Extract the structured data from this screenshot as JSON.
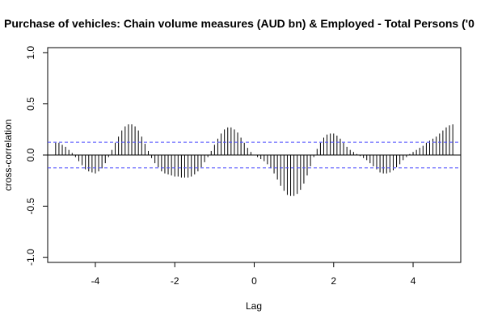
{
  "colors": {
    "background": "#ffffff",
    "spike": "#000000",
    "confidence_line": "#4d4dff",
    "zero_line": "#000000",
    "axis": "#000000"
  },
  "chart_data": {
    "type": "bar",
    "subtype": "cross-correlation-spikes",
    "title": "Purchase of vehicles: Chain volume measures (AUD bn) & Employed - Total Persons ('0",
    "xlabel": "Lag",
    "ylabel": "cross-correlation",
    "xlim": [
      -5.2,
      5.2
    ],
    "ylim": [
      -1.05,
      1.05
    ],
    "x_ticks": [
      -4,
      -2,
      0,
      2,
      4
    ],
    "x_tick_labels": [
      "-4",
      "-2",
      "0",
      "2",
      "4"
    ],
    "y_ticks": [
      -1.0,
      -0.5,
      0.0,
      0.5,
      1.0
    ],
    "y_tick_labels": [
      "-1.0",
      "-0.5",
      "0.0",
      "0.5",
      "1.0"
    ],
    "confidence_bound": 0.125,
    "grid": false,
    "legend": "none",
    "lags": [
      -5.0,
      -4.9167,
      -4.8333,
      -4.75,
      -4.6667,
      -4.5833,
      -4.5,
      -4.4167,
      -4.3333,
      -4.25,
      -4.1667,
      -4.0833,
      -4.0,
      -3.9167,
      -3.8333,
      -3.75,
      -3.6667,
      -3.5833,
      -3.5,
      -3.4167,
      -3.3333,
      -3.25,
      -3.1667,
      -3.0833,
      -3.0,
      -2.9167,
      -2.8333,
      -2.75,
      -2.6667,
      -2.5833,
      -2.5,
      -2.4167,
      -2.3333,
      -2.25,
      -2.1667,
      -2.0833,
      -2.0,
      -1.9167,
      -1.8333,
      -1.75,
      -1.6667,
      -1.5833,
      -1.5,
      -1.4167,
      -1.3333,
      -1.25,
      -1.1667,
      -1.0833,
      -1.0,
      -0.9167,
      -0.8333,
      -0.75,
      -0.6667,
      -0.5833,
      -0.5,
      -0.4167,
      -0.3333,
      -0.25,
      -0.1667,
      -0.0833,
      0.0,
      0.0833,
      0.1667,
      0.25,
      0.3333,
      0.4167,
      0.5,
      0.5833,
      0.6667,
      0.75,
      0.8333,
      0.9167,
      1.0,
      1.0833,
      1.1667,
      1.25,
      1.3333,
      1.4167,
      1.5,
      1.5833,
      1.6667,
      1.75,
      1.8333,
      1.9167,
      2.0,
      2.0833,
      2.1667,
      2.25,
      2.3333,
      2.4167,
      2.5,
      2.5833,
      2.6667,
      2.75,
      2.8333,
      2.9167,
      3.0,
      3.0833,
      3.1667,
      3.25,
      3.3333,
      3.4167,
      3.5,
      3.5833,
      3.6667,
      3.75,
      3.8333,
      3.9167,
      4.0,
      4.0833,
      4.1667,
      4.25,
      4.3333,
      4.4167,
      4.5,
      4.5833,
      4.6667,
      4.75,
      4.8333,
      4.9167,
      5.0
    ],
    "values": [
      0.12,
      0.12,
      0.1,
      0.08,
      0.05,
      0.02,
      -0.02,
      -0.06,
      -0.1,
      -0.14,
      -0.16,
      -0.17,
      -0.18,
      -0.16,
      -0.13,
      -0.08,
      -0.02,
      0.05,
      0.12,
      0.18,
      0.24,
      0.28,
      0.3,
      0.3,
      0.28,
      0.24,
      0.18,
      0.11,
      0.04,
      -0.03,
      -0.08,
      -0.12,
      -0.16,
      -0.18,
      -0.19,
      -0.2,
      -0.21,
      -0.21,
      -0.22,
      -0.22,
      -0.22,
      -0.21,
      -0.19,
      -0.16,
      -0.12,
      -0.07,
      -0.02,
      0.04,
      0.1,
      0.16,
      0.21,
      0.25,
      0.27,
      0.27,
      0.25,
      0.22,
      0.17,
      0.12,
      0.07,
      0.03,
      0.0,
      -0.02,
      -0.04,
      -0.06,
      -0.09,
      -0.13,
      -0.18,
      -0.24,
      -0.3,
      -0.35,
      -0.39,
      -0.4,
      -0.4,
      -0.38,
      -0.34,
      -0.28,
      -0.2,
      -0.11,
      -0.02,
      0.06,
      0.12,
      0.17,
      0.2,
      0.21,
      0.21,
      0.19,
      0.16,
      0.12,
      0.08,
      0.05,
      0.03,
      0.01,
      -0.01,
      -0.03,
      -0.05,
      -0.08,
      -0.11,
      -0.14,
      -0.17,
      -0.18,
      -0.18,
      -0.17,
      -0.15,
      -0.12,
      -0.09,
      -0.05,
      -0.02,
      0.01,
      0.03,
      0.05,
      0.07,
      0.09,
      0.12,
      0.14,
      0.16,
      0.18,
      0.21,
      0.24,
      0.27,
      0.29,
      0.3
    ]
  }
}
